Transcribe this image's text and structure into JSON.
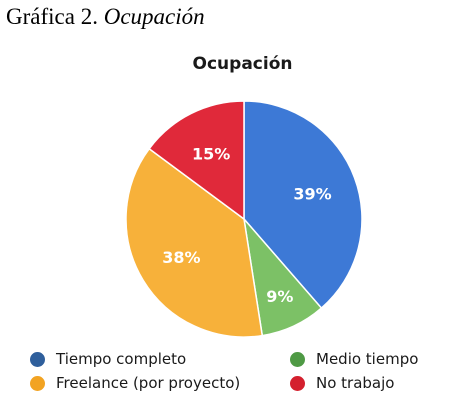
{
  "caption": {
    "prefix": "Gráfica 2.",
    "title": "Ocupación"
  },
  "chart_data": {
    "type": "pie",
    "title": "Ocupación",
    "legend_position": "bottom",
    "slices": [
      {
        "name": "Tiempo completo",
        "value": 39,
        "label": "39%",
        "color": "#3d79d6"
      },
      {
        "name": "Medio tiempo",
        "value": 9,
        "label": "9%",
        "color": "#7cc166"
      },
      {
        "name": "Freelance (por proyecto)",
        "value": 38,
        "label": "38%",
        "color": "#f7b13a"
      },
      {
        "name": "No trabajo",
        "value": 15,
        "label": "15%",
        "color": "#e0293a"
      }
    ]
  },
  "legend": [
    {
      "label": "Tiempo completo",
      "color": "#2f5f9c"
    },
    {
      "label": "Medio tiempo",
      "color": "#4f9a45"
    },
    {
      "label": "Freelance (por proyecto)",
      "color": "#f2a322"
    },
    {
      "label": "No trabajo",
      "color": "#d4202e"
    }
  ]
}
